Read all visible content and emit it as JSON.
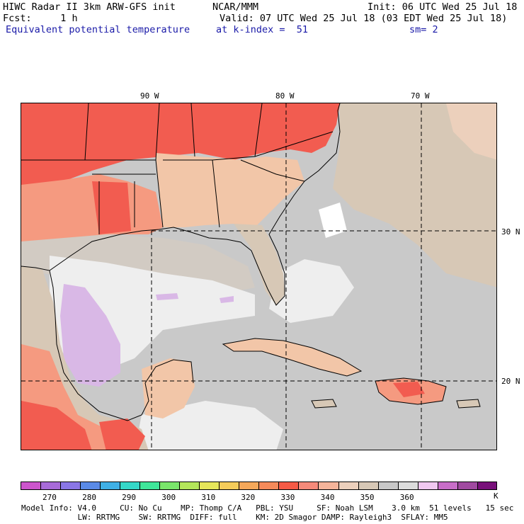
{
  "header": {
    "line1_left": "HIWC Radar II 3km ARW-GFS init",
    "line1_mid": "NCAR/MMM",
    "line1_right": "Init: 06 UTC Wed 25 Jul 18",
    "line2_left": "Fcst:     1 h",
    "line2_right": "Valid: 07 UTC Wed 25 Jul 18 (03 EDT Wed 25 Jul 18)",
    "line3_left": "Equivalent potential temperature",
    "line3_mid": "at k-index =  51",
    "line3_right": "sm= 2"
  },
  "map": {
    "lon_labels": [
      "90 W",
      "80 W",
      "70 W"
    ],
    "lat_labels": [
      "30 N",
      "20 N"
    ],
    "colors": {
      "ocean_gray": "#c9c9c9",
      "light_white": "#eeeeee",
      "lavender": "#d9b8e6",
      "tan": "#d7c8b6",
      "peach": "#f2c6a8",
      "salmon": "#f59a80",
      "red": "#f25c50",
      "white": "#ffffff"
    }
  },
  "colorbar": {
    "colors": [
      "#cc55cc",
      "#a86bd8",
      "#8a76e6",
      "#5a8ae6",
      "#3fb0e6",
      "#35d8c8",
      "#3fe69a",
      "#7ae66b",
      "#b4e65a",
      "#e6e65a",
      "#f5cc5a",
      "#f5a85a",
      "#f58a5a",
      "#f55a46",
      "#f58a7a",
      "#f5b49a",
      "#ecd0bc",
      "#d7c8b6",
      "#c8c8c8",
      "#dcdcdc",
      "#f0c8f0",
      "#c86ec8",
      "#a04aa0",
      "#78107a"
    ],
    "labels": [
      "270",
      "280",
      "290",
      "300",
      "310",
      "320",
      "330",
      "340",
      "350",
      "360"
    ],
    "unit": "K"
  },
  "footer": {
    "line1": "Model Info: V4.0     CU: No Cu    MP: Thomp C/A   PBL: YSU     SF: Noah LSM    3.0 km  51 levels   15 sec",
    "line2": "            LW: RRTMG    SW: RRTMG  DIFF: full    KM: 2D Smagor DAMP: Rayleigh3  SFLAY: MM5"
  }
}
